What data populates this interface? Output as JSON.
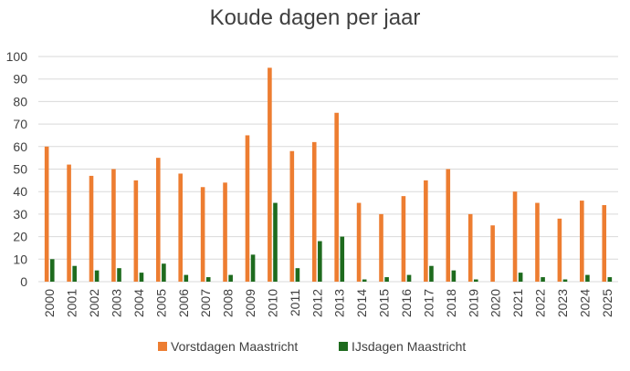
{
  "chart_data": {
    "type": "bar",
    "title": "Koude dagen per jaar",
    "xlabel": "",
    "ylabel": "",
    "ylim": [
      0,
      100
    ],
    "yticks": [
      0,
      10,
      20,
      30,
      40,
      50,
      60,
      70,
      80,
      90,
      100
    ],
    "grid": true,
    "legend_position": "bottom",
    "categories": [
      "2000",
      "2001",
      "2002",
      "2003",
      "2004",
      "2005",
      "2006",
      "2007",
      "2008",
      "2009",
      "2010",
      "2011",
      "2012",
      "2013",
      "2014",
      "2015",
      "2016",
      "2017",
      "2018",
      "2019",
      "2020",
      "2021",
      "2022",
      "2023",
      "2024",
      "2025"
    ],
    "series": [
      {
        "name": "Vorstdagen Maastricht",
        "color": "#ED7D31",
        "values": [
          60,
          52,
          47,
          50,
          45,
          55,
          48,
          42,
          44,
          65,
          95,
          58,
          62,
          75,
          35,
          30,
          38,
          45,
          50,
          30,
          25,
          40,
          35,
          28,
          36,
          34
        ]
      },
      {
        "name": "IJsdagen Maastricht",
        "color": "#1E6B1E",
        "values": [
          10,
          7,
          5,
          6,
          4,
          8,
          3,
          2,
          3,
          12,
          35,
          6,
          18,
          20,
          1,
          2,
          3,
          7,
          5,
          1,
          0,
          4,
          2,
          1,
          3,
          2
        ]
      }
    ]
  }
}
